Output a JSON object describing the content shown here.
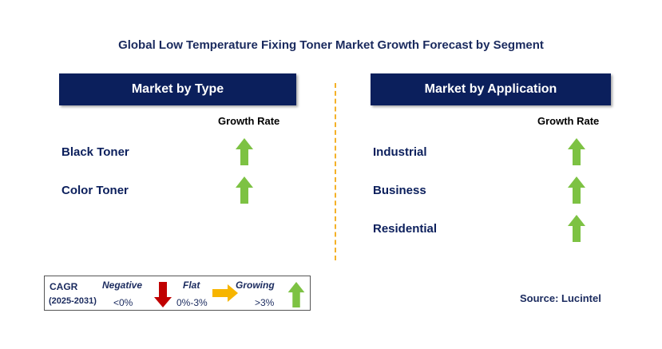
{
  "title": "Global Low Temperature Fixing Toner Market Growth Forecast by Segment",
  "colors": {
    "header_bg": "#0b1f5c",
    "up_arrow": "#7dc243",
    "down_arrow": "#c00000",
    "flat_arrow": "#f7b500",
    "divider": "#f4b128"
  },
  "left_panel": {
    "header": "Market by Type",
    "growth_rate_label": "Growth Rate",
    "rows": [
      {
        "label": "Black Toner",
        "trend": "growing",
        "icon": "up-arrow-icon"
      },
      {
        "label": "Color Toner",
        "trend": "growing",
        "icon": "up-arrow-icon"
      }
    ]
  },
  "right_panel": {
    "header": "Market by Application",
    "growth_rate_label": "Growth Rate",
    "rows": [
      {
        "label": "Industrial",
        "trend": "growing",
        "icon": "up-arrow-icon"
      },
      {
        "label": "Business",
        "trend": "growing",
        "icon": "up-arrow-icon"
      },
      {
        "label": "Residential",
        "trend": "growing",
        "icon": "up-arrow-icon"
      }
    ]
  },
  "legend": {
    "cagr_label": "CAGR",
    "period": "(2025-2031)",
    "negative_label": "Negative",
    "negative_range": "<0%",
    "flat_label": "Flat",
    "flat_range": "0%-3%",
    "growing_label": "Growing",
    "growing_range": ">3%"
  },
  "source": "Source: Lucintel"
}
